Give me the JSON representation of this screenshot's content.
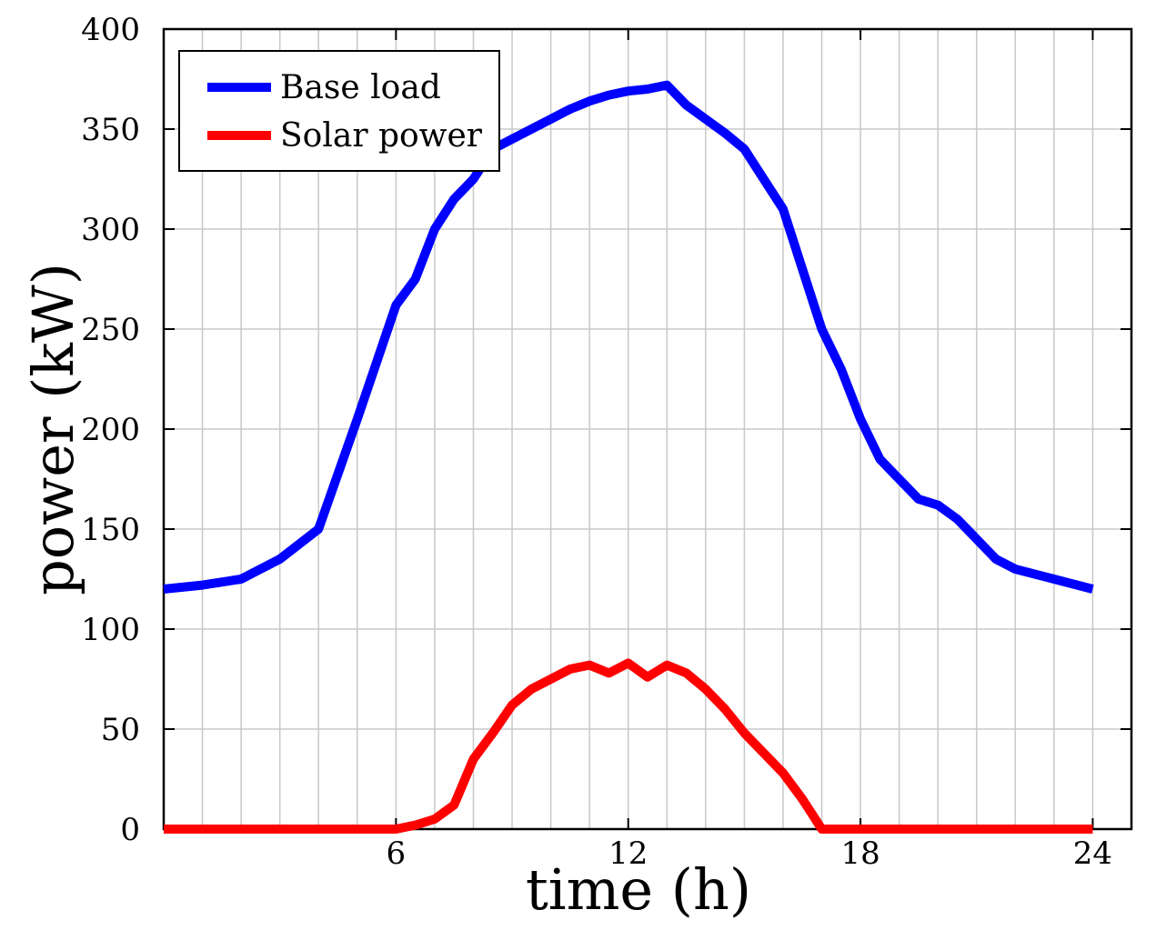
{
  "chart_data": {
    "type": "line",
    "title": "",
    "xlabel": "time (h)",
    "ylabel": "power (kW)",
    "xlim": [
      0,
      25
    ],
    "ylim": [
      0,
      400
    ],
    "grid": true,
    "legend_position": "top-left",
    "x_ticks": [
      6,
      12,
      18,
      24
    ],
    "x_tick_labels": [
      "6",
      "12",
      "18",
      "24"
    ],
    "y_ticks": [
      0,
      50,
      100,
      150,
      200,
      250,
      300,
      350,
      400
    ],
    "y_tick_labels": [
      "0",
      "50",
      "100",
      "150",
      "200",
      "250",
      "300",
      "350",
      "400"
    ],
    "series": [
      {
        "name": "Base load",
        "color": "#0000ff",
        "x": [
          0,
          1,
          2,
          3,
          4,
          5,
          6,
          6.5,
          7,
          7.5,
          8,
          8.5,
          9,
          9.5,
          10,
          10.5,
          11,
          11.5,
          12,
          12.5,
          13,
          13.5,
          14,
          14.5,
          15,
          15.5,
          16,
          16.5,
          17,
          17.5,
          18,
          18.5,
          19,
          19.5,
          20,
          20.5,
          21,
          21.5,
          22,
          23,
          24
        ],
        "values": [
          120,
          122,
          125,
          135,
          150,
          205,
          262,
          275,
          300,
          315,
          325,
          340,
          345,
          350,
          355,
          360,
          364,
          367,
          369,
          370,
          372,
          362,
          355,
          348,
          340,
          325,
          310,
          280,
          250,
          230,
          205,
          185,
          175,
          165,
          162,
          155,
          145,
          135,
          130,
          125,
          120
        ]
      },
      {
        "name": "Solar power",
        "color": "#ff0000",
        "x": [
          0,
          1,
          2,
          3,
          4,
          5,
          6,
          6.5,
          7,
          7.5,
          8,
          8.5,
          9,
          9.5,
          10,
          10.5,
          11,
          11.5,
          12,
          12.5,
          13,
          13.5,
          14,
          14.5,
          15,
          15.5,
          16,
          16.5,
          17,
          17.5,
          18,
          19,
          20,
          21,
          22,
          23,
          24
        ],
        "values": [
          0,
          0,
          0,
          0,
          0,
          0,
          0,
          2,
          5,
          12,
          35,
          48,
          62,
          70,
          75,
          80,
          82,
          78,
          83,
          76,
          82,
          78,
          70,
          60,
          48,
          38,
          28,
          15,
          0,
          0,
          0,
          0,
          0,
          0,
          0,
          0,
          0
        ]
      }
    ]
  }
}
